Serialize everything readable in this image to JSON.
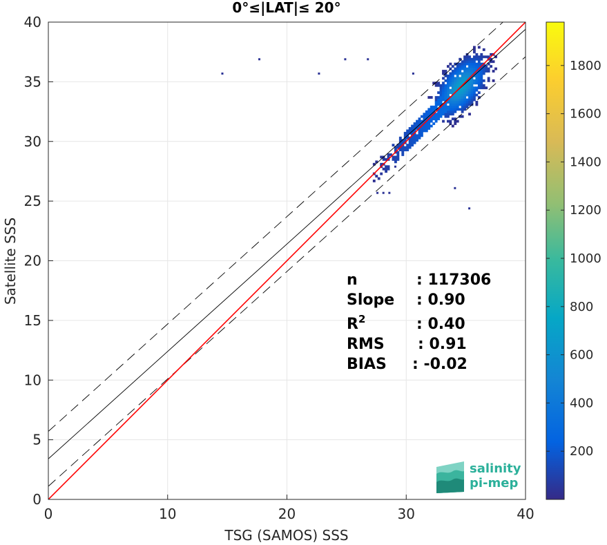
{
  "chart_data": {
    "type": "heatmap",
    "title": "0°≤|LAT|≤ 20°",
    "xlabel": "TSG (SAMOS) SSS",
    "ylabel": "Satellite SSS",
    "xlim": [
      0,
      40
    ],
    "ylim": [
      0,
      40
    ],
    "xticks": [
      "0",
      "10",
      "20",
      "30",
      "40"
    ],
    "yticks": [
      "0",
      "5",
      "10",
      "15",
      "20",
      "25",
      "30",
      "35",
      "40"
    ],
    "grid": true,
    "colorbar": {
      "range": [
        0,
        1980
      ],
      "ticks": [
        "200",
        "400",
        "600",
        "800",
        "1000",
        "1200",
        "1400",
        "1600",
        "1800"
      ],
      "colormap": "parula"
    },
    "density_core": {
      "x": 34.5,
      "y": 34.5,
      "sx": 1.1,
      "sy": 1.3,
      "rho": 0.55,
      "peak": 700
    },
    "lines": {
      "identity": {
        "slope": 1.0,
        "intercept": 0.0,
        "color": "#ff0000"
      },
      "fit": {
        "slope": 0.9,
        "intercept": 3.4,
        "color": "#000000"
      },
      "fit_upper": {
        "slope": 0.9,
        "intercept": 5.7,
        "color": "#000000",
        "style": "dashed"
      },
      "fit_lower": {
        "slope": 0.9,
        "intercept": 1.1,
        "color": "#000000",
        "style": "dashed"
      }
    },
    "outliers": [
      [
        14.5,
        35.6
      ],
      [
        17.6,
        36.8
      ],
      [
        22.6,
        35.6
      ],
      [
        24.8,
        36.8
      ],
      [
        26.7,
        36.8
      ],
      [
        30.5,
        35.6
      ],
      [
        35.2,
        24.3
      ],
      [
        27.5,
        25.6
      ],
      [
        28.0,
        25.6
      ],
      [
        28.5,
        25.6
      ],
      [
        29.0,
        27.8
      ],
      [
        34.0,
        26.0
      ]
    ],
    "stats": [
      {
        "label": "n",
        "value": ": 117306"
      },
      {
        "label": "Slope",
        "value": ": 0.90"
      },
      {
        "label": "R",
        "sup": "2",
        "value": ": 0.40"
      },
      {
        "label": "RMS",
        "value": ": 0.91"
      },
      {
        "label": "BIAS",
        "value": ": -0.02"
      }
    ]
  },
  "logo": {
    "line1": "salinity",
    "line2": "pi-mep"
  }
}
